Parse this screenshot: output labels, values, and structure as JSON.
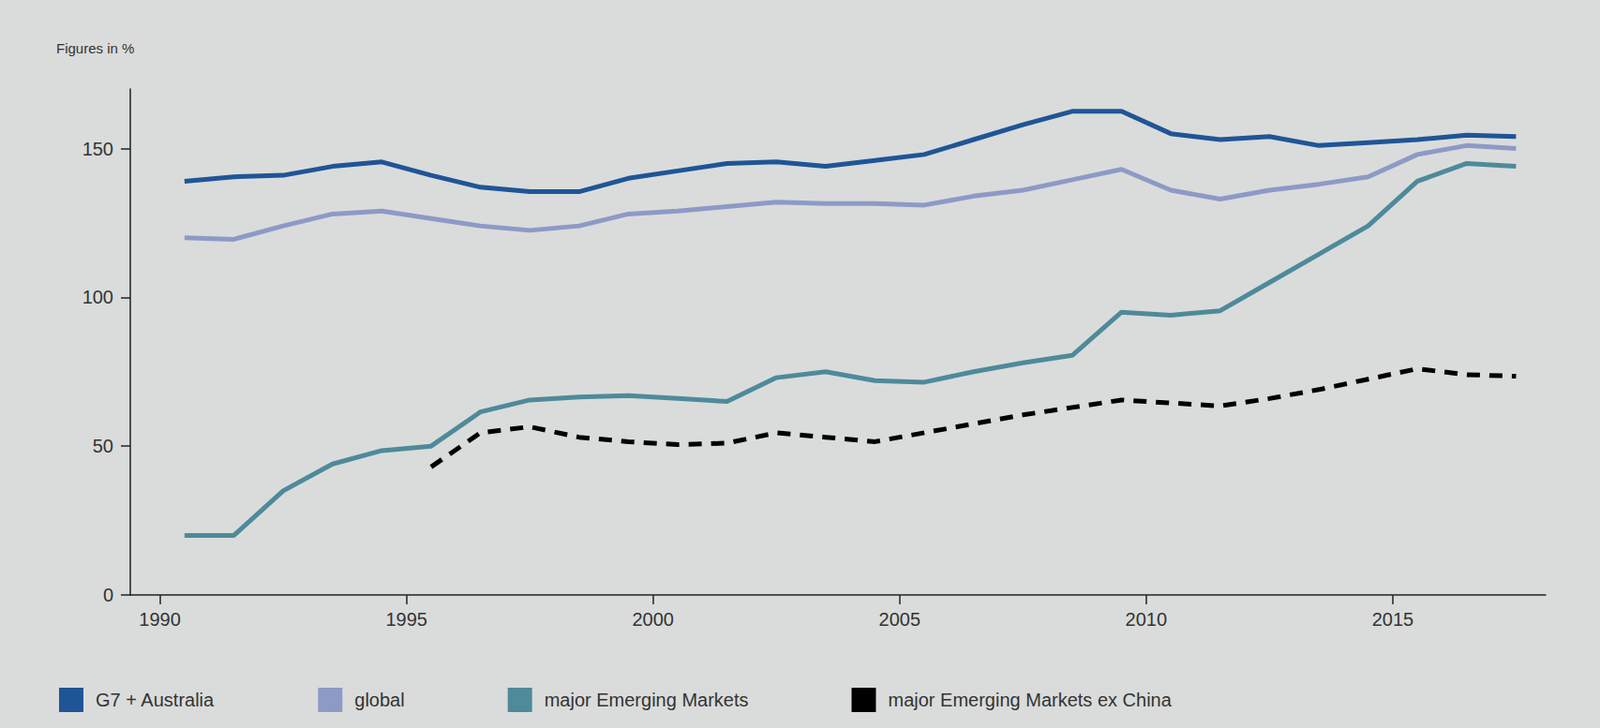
{
  "chart_data": {
    "type": "line",
    "ylabel": "Figures in %",
    "x": [
      1990.5,
      1991.5,
      1992.5,
      1993.5,
      1994.5,
      1995.5,
      1996.5,
      1997.5,
      1998.5,
      1999.5,
      2000.5,
      2001.5,
      2002.5,
      2003.5,
      2004.5,
      2005.5,
      2006.5,
      2007.5,
      2008.5,
      2009.5,
      2010.5,
      2011.5,
      2012.5,
      2013.5,
      2014.5,
      2015.5,
      2016.5,
      2017.5
    ],
    "series": [
      {
        "name": "G7 + Australia",
        "color": "#1f5597",
        "line_style": "solid",
        "values": [
          139,
          140.5,
          141,
          144,
          145.5,
          141,
          137,
          135.5,
          135.5,
          140,
          142.5,
          145,
          145.5,
          144,
          146,
          148,
          153,
          158,
          162.5,
          162.5,
          155,
          153,
          154,
          151,
          152,
          153,
          154.5,
          154
        ]
      },
      {
        "name": "global",
        "color": "#8d9ac6",
        "line_style": "solid",
        "values": [
          120,
          119.5,
          124,
          128,
          129,
          126.5,
          124,
          122.5,
          124,
          128,
          129,
          130.5,
          132,
          131.5,
          131.5,
          131,
          134,
          136,
          139.5,
          143,
          136,
          133,
          136,
          138,
          140.5,
          148,
          151,
          150
        ]
      },
      {
        "name": "major Emerging Markets",
        "color": "#4e8a9a",
        "line_style": "solid",
        "values": [
          20,
          20,
          35,
          44,
          48.5,
          50,
          61.5,
          65.5,
          66.5,
          67,
          66,
          65,
          73,
          75,
          72,
          71.5,
          75,
          78,
          80.5,
          95,
          94,
          95.5,
          105,
          114.5,
          124,
          139,
          145,
          144
        ]
      },
      {
        "name": "major Emerging Markets ex China",
        "color": "#000000",
        "line_style": "dashed",
        "values": [
          null,
          null,
          null,
          null,
          null,
          43,
          54.5,
          56.5,
          53,
          51.5,
          50.5,
          51,
          54.5,
          53,
          51.5,
          54.5,
          57.5,
          60.5,
          63,
          65.5,
          64.5,
          63.5,
          66,
          69,
          72.5,
          76,
          74,
          73.5
        ]
      }
    ],
    "xlim": [
      1989.4,
      2018.1
    ],
    "xticks": [
      1990,
      1995,
      2000,
      2005,
      2010,
      2015
    ],
    "ylim": [
      0,
      170
    ],
    "yticks": [
      0,
      50,
      100,
      150
    ],
    "grid": false,
    "legend": "bottom"
  }
}
